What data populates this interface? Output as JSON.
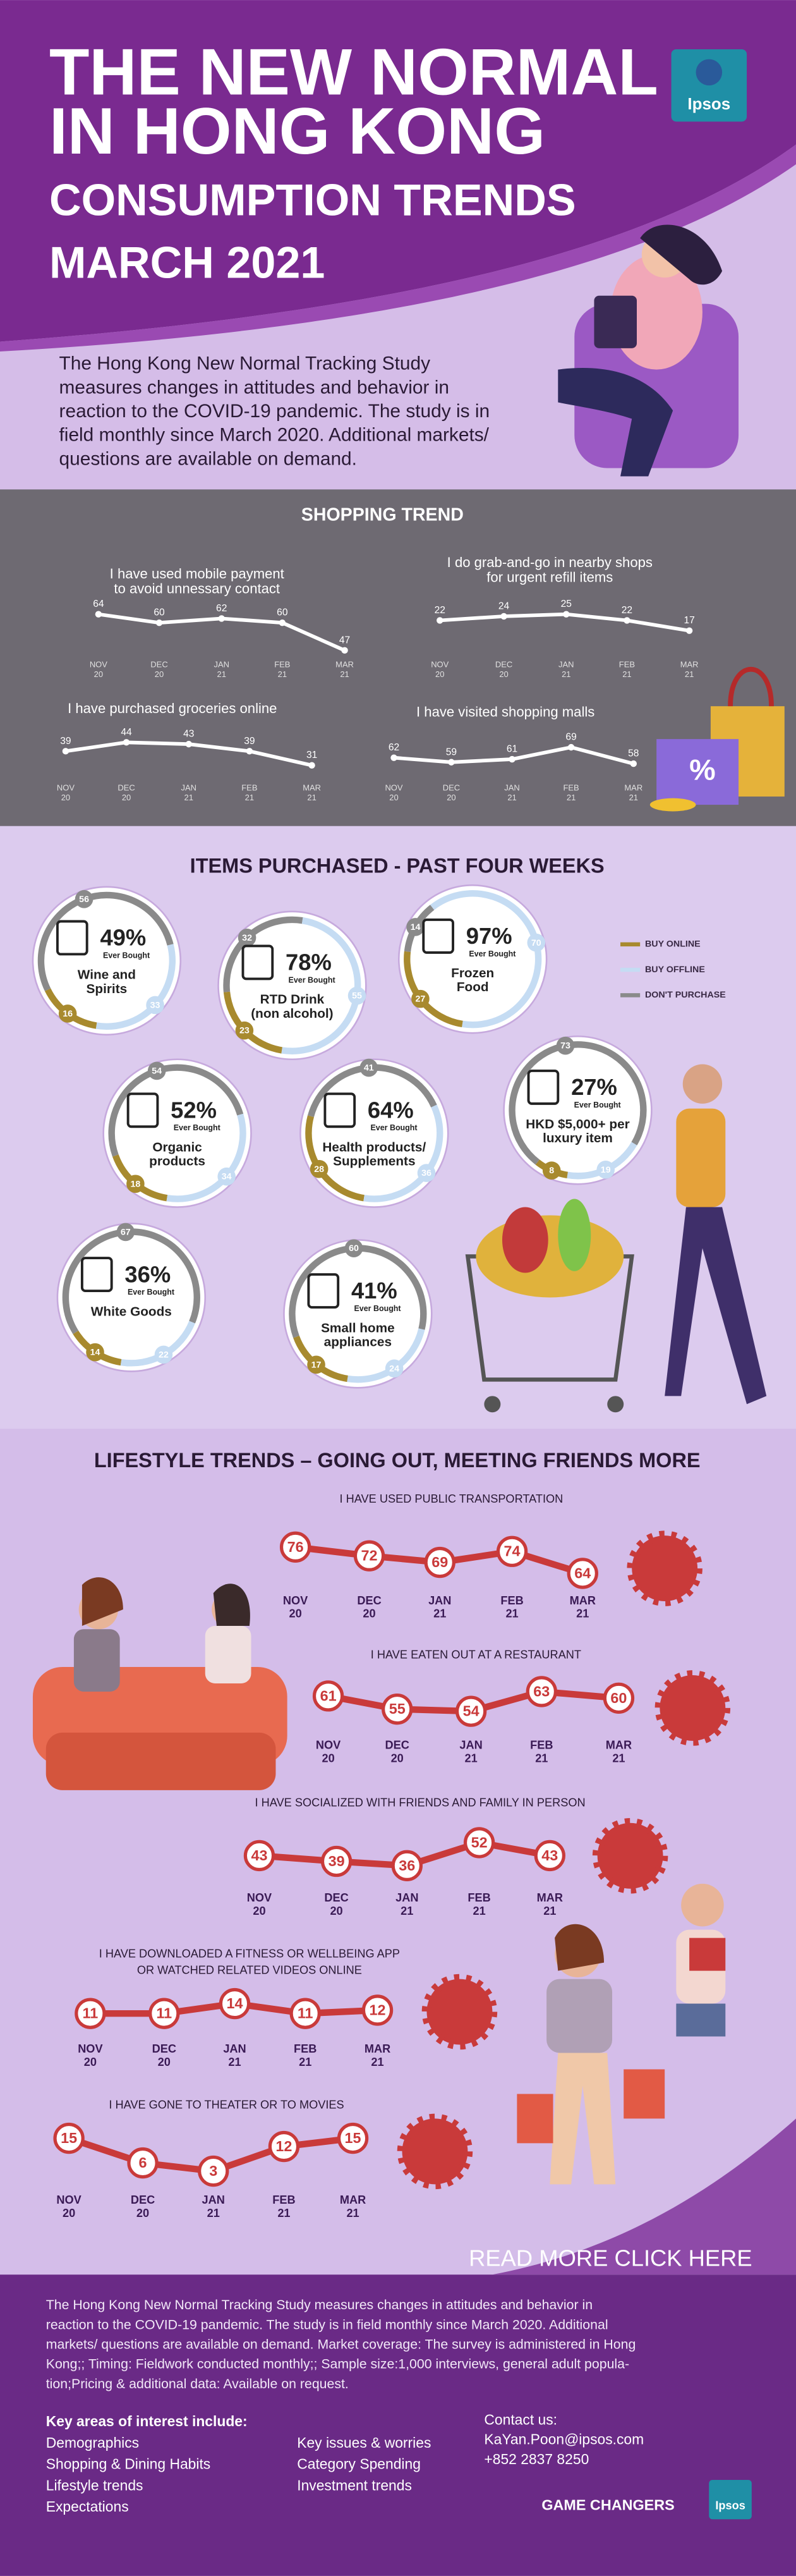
{
  "header": {
    "title_lines": [
      "THE NEW NORMAL",
      "IN HONG KONG"
    ],
    "subtitle_lines": [
      "CONSUMPTION TRENDS",
      "MARCH 2021"
    ],
    "logo": "Ipsos"
  },
  "intro": [
    "The Hong Kong New Normal Tracking Study",
    "measures changes in attitudes  and behavior in",
    "reaction to the COVID-19 pandemic. The study is in",
    "field monthly since March 2020. Additional markets/",
    "questions are available on demand."
  ],
  "periods": {
    "months": [
      "NOV",
      "DEC",
      "JAN",
      "FEB",
      "MAR"
    ],
    "years": [
      "20",
      "20",
      "21",
      "21",
      "21"
    ]
  },
  "shopping_trend": {
    "title": "SHOPPING TREND",
    "charts": [
      {
        "label_lines": [
          "I have used mobile payment",
          "to avoid unnessary contact"
        ],
        "values": [
          64,
          60,
          62,
          60,
          47
        ]
      },
      {
        "label_lines": [
          "I do grab-and-go in nearby shops",
          "for urgent refill items"
        ],
        "values": [
          22,
          24,
          25,
          22,
          17
        ]
      },
      {
        "label_lines": [
          "I have purchased groceries online"
        ],
        "values": [
          39,
          44,
          43,
          39,
          31
        ]
      },
      {
        "label_lines": [
          "I have visited shopping malls"
        ],
        "values": [
          62,
          59,
          61,
          69,
          58
        ]
      }
    ]
  },
  "items_purchased": {
    "title": "ITEMS PURCHASED - PAST FOUR WEEKS",
    "ever_bought_caption": "Ever Bought",
    "legend": [
      {
        "name": "BUY ONLINE",
        "color": "#a88a2e"
      },
      {
        "name": "BUY OFFLINE",
        "color": "#c5dcf3"
      },
      {
        "name": "DON'T PURCHASE",
        "color": "#8a8a8a"
      }
    ],
    "items": [
      {
        "name_lines": [
          "Wine and",
          "Spirits"
        ],
        "ever_bought": "49%",
        "online": 16,
        "offline": 33,
        "none": 56
      },
      {
        "name_lines": [
          "RTD Drink",
          "(non alcohol)"
        ],
        "ever_bought": "78%",
        "online": 23,
        "offline": 55,
        "none": 32
      },
      {
        "name_lines": [
          "Frozen",
          "Food"
        ],
        "ever_bought": "97%",
        "online": 27,
        "offline": 70,
        "none": 14
      },
      {
        "name_lines": [
          "Organic",
          "products"
        ],
        "ever_bought": "52%",
        "online": 18,
        "offline": 34,
        "none": 54
      },
      {
        "name_lines": [
          "Health products/",
          "Supplements"
        ],
        "ever_bought": "64%",
        "online": 28,
        "offline": 36,
        "none": 41
      },
      {
        "name_lines": [
          "HKD $5,000+ per",
          "luxury item"
        ],
        "ever_bought": "27%",
        "online": 8,
        "offline": 19,
        "none": 73
      },
      {
        "name_lines": [
          "White Goods"
        ],
        "ever_bought": "36%",
        "online": 14,
        "offline": 22,
        "none": 67
      },
      {
        "name_lines": [
          "Small home",
          "appliances"
        ],
        "ever_bought": "41%",
        "online": 17,
        "offline": 24,
        "none": 60
      }
    ]
  },
  "lifestyle_trends": {
    "title": "LIFESTYLE TRENDS – GOING OUT, MEETING FRIENDS MORE",
    "charts": [
      {
        "label_lines": [
          "I HAVE USED PUBLIC TRANSPORTATION"
        ],
        "values": [
          76,
          72,
          69,
          74,
          64
        ]
      },
      {
        "label_lines": [
          "I HAVE EATEN OUT AT A RESTAURANT"
        ],
        "values": [
          61,
          55,
          54,
          63,
          60
        ]
      },
      {
        "label_lines": [
          "I HAVE SOCIALIZED WITH FRIENDS AND FAMILY IN PERSON"
        ],
        "values": [
          43,
          39,
          36,
          52,
          43
        ]
      },
      {
        "label_lines": [
          "I HAVE DOWNLOADED A FITNESS OR WELLBEING APP",
          "OR WATCHED RELATED VIDEOS ONLINE"
        ],
        "values": [
          11,
          11,
          14,
          11,
          12
        ]
      },
      {
        "label_lines": [
          "I HAVE GONE TO THEATER OR TO MOVIES"
        ],
        "values": [
          15,
          6,
          3,
          12,
          15
        ]
      }
    ]
  },
  "read_more": "READ MORE  CLICK HERE",
  "footer": {
    "paragraph_lines": [
      "The Hong Kong New Normal Tracking Study measures changes in attitudes  and behavior in",
      "reaction to the COVID-19 pandemic. The study is in field monthly since March 2020. Additional",
      "markets/ questions are available on demand. Market coverage: The survey is administered in Hong",
      "Kong;; Timing: Fieldwork conducted monthly;; Sample size:1,000 interviews, general adult popula-",
      "tion;Pricing & additional data: Available on request."
    ],
    "key_areas_title": "Key areas of interest include:",
    "key_areas_col1": [
      "Demographics",
      "Shopping & Dining Habits",
      "Lifestyle trends",
      "Expectations"
    ],
    "key_areas_col2": [
      "Key issues & worries",
      "Category Spending",
      "Investment trends"
    ],
    "contact_title": "Contact us:",
    "email": "KaYan.Poon@ipsos.com",
    "phone": "+852 2837 8250",
    "tagline": "GAME CHANGERS",
    "logo": "Ipsos"
  }
}
